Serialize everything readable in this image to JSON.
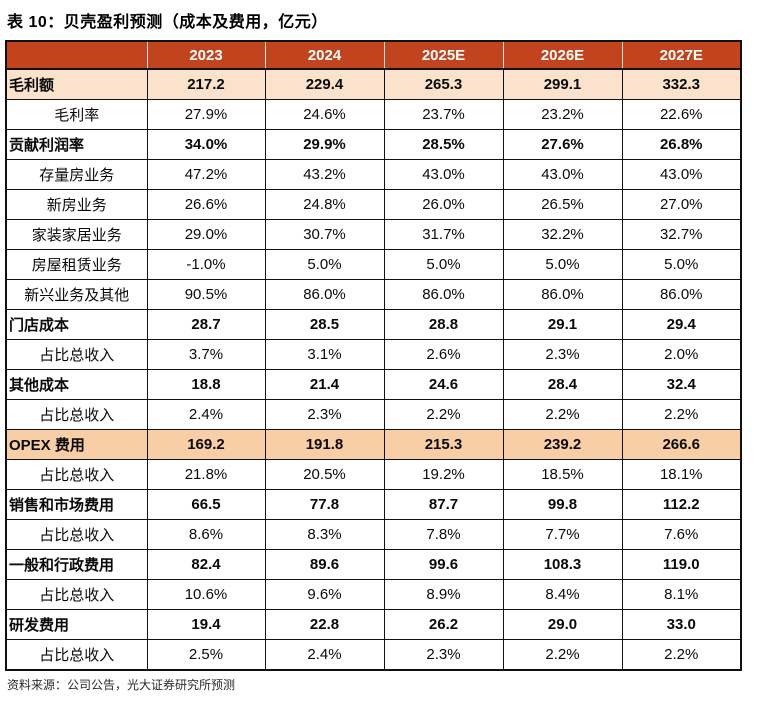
{
  "title": "表 10：贝壳盈利预测（成本及费用，亿元）",
  "source": "资料来源：公司公告，光大证券研究所预测",
  "colors": {
    "header_bg": "#C2441F",
    "header_text": "#FFFFFF",
    "highlight_light": "#FBE2CD",
    "highlight_deep": "#F8CEA6",
    "border": "#111111"
  },
  "table": {
    "columns": [
      "",
      "2023",
      "2024",
      "2025E",
      "2026E",
      "2027E"
    ],
    "rows": [
      {
        "label": "毛利额",
        "style": "highlight1",
        "values": [
          "217.2",
          "229.4",
          "265.3",
          "299.1",
          "332.3"
        ]
      },
      {
        "label": "毛利率",
        "style": "sub",
        "values": [
          "27.9%",
          "24.6%",
          "23.7%",
          "23.2%",
          "22.6%"
        ]
      },
      {
        "label": "贡献利润率",
        "style": "section",
        "values": [
          "34.0%",
          "29.9%",
          "28.5%",
          "27.6%",
          "26.8%"
        ]
      },
      {
        "label": "存量房业务",
        "style": "sub",
        "values": [
          "47.2%",
          "43.2%",
          "43.0%",
          "43.0%",
          "43.0%"
        ]
      },
      {
        "label": "新房业务",
        "style": "sub",
        "values": [
          "26.6%",
          "24.8%",
          "26.0%",
          "26.5%",
          "27.0%"
        ]
      },
      {
        "label": "家装家居业务",
        "style": "sub",
        "values": [
          "29.0%",
          "30.7%",
          "31.7%",
          "32.2%",
          "32.7%"
        ]
      },
      {
        "label": "房屋租赁业务",
        "style": "sub",
        "values": [
          "-1.0%",
          "5.0%",
          "5.0%",
          "5.0%",
          "5.0%"
        ]
      },
      {
        "label": "新兴业务及其他",
        "style": "sub",
        "values": [
          "90.5%",
          "86.0%",
          "86.0%",
          "86.0%",
          "86.0%"
        ]
      },
      {
        "label": "门店成本",
        "style": "section",
        "values": [
          "28.7",
          "28.5",
          "28.8",
          "29.1",
          "29.4"
        ]
      },
      {
        "label": "占比总收入",
        "style": "sub",
        "values": [
          "3.7%",
          "3.1%",
          "2.6%",
          "2.3%",
          "2.0%"
        ]
      },
      {
        "label": "其他成本",
        "style": "section",
        "values": [
          "18.8",
          "21.4",
          "24.6",
          "28.4",
          "32.4"
        ]
      },
      {
        "label": "占比总收入",
        "style": "sub",
        "values": [
          "2.4%",
          "2.3%",
          "2.2%",
          "2.2%",
          "2.2%"
        ]
      },
      {
        "label": "OPEX 费用",
        "style": "highlight2",
        "values": [
          "169.2",
          "191.8",
          "215.3",
          "239.2",
          "266.6"
        ]
      },
      {
        "label": "占比总收入",
        "style": "sub",
        "values": [
          "21.8%",
          "20.5%",
          "19.2%",
          "18.5%",
          "18.1%"
        ]
      },
      {
        "label": "销售和市场费用",
        "style": "section",
        "values": [
          "66.5",
          "77.8",
          "87.7",
          "99.8",
          "112.2"
        ]
      },
      {
        "label": "占比总收入",
        "style": "sub",
        "values": [
          "8.6%",
          "8.3%",
          "7.8%",
          "7.7%",
          "7.6%"
        ]
      },
      {
        "label": "一般和行政费用",
        "style": "section",
        "values": [
          "82.4",
          "89.6",
          "99.6",
          "108.3",
          "119.0"
        ]
      },
      {
        "label": "占比总收入",
        "style": "sub",
        "values": [
          "10.6%",
          "9.6%",
          "8.9%",
          "8.4%",
          "8.1%"
        ]
      },
      {
        "label": "研发费用",
        "style": "section",
        "values": [
          "19.4",
          "22.8",
          "26.2",
          "29.0",
          "33.0"
        ]
      },
      {
        "label": "占比总收入",
        "style": "sub",
        "values": [
          "2.5%",
          "2.4%",
          "2.3%",
          "2.2%",
          "2.2%"
        ]
      }
    ]
  }
}
